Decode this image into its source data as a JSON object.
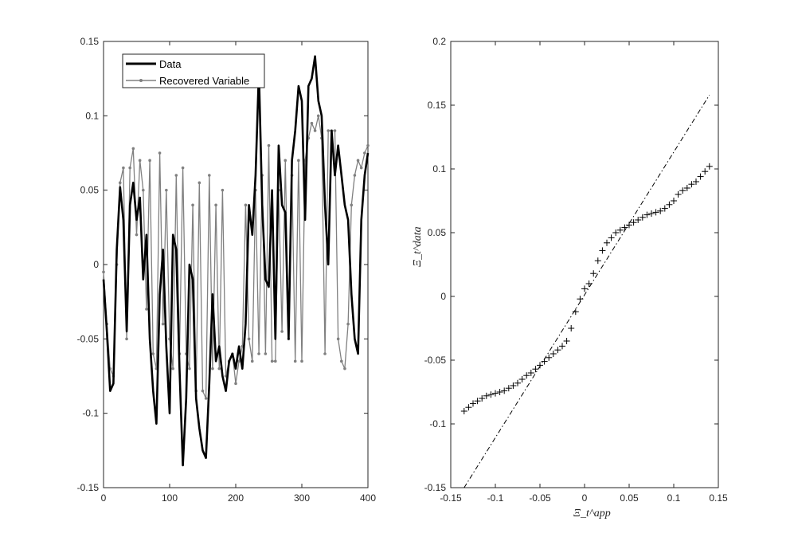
{
  "chart_data": [
    {
      "type": "line",
      "xlim": [
        0,
        400
      ],
      "ylim": [
        -0.15,
        0.15
      ],
      "xticks": [
        0,
        100,
        200,
        300,
        400
      ],
      "yticks": [
        -0.15,
        -0.1,
        -0.05,
        0,
        0.05,
        0.1,
        0.15
      ],
      "xtick_labels": [
        "0",
        "100",
        "200",
        "300",
        "400"
      ],
      "ytick_labels": [
        "-0.15",
        "-0.1",
        "-0.05",
        "0",
        "0.05",
        "0.1",
        "0.15"
      ],
      "legend_position": "top-left",
      "grid": false,
      "series": [
        {
          "name": "Data",
          "color": "#000000",
          "style": "solid-thick",
          "x": [
            0,
            5,
            10,
            15,
            20,
            25,
            30,
            35,
            40,
            45,
            50,
            55,
            60,
            65,
            70,
            75,
            80,
            85,
            90,
            95,
            100,
            105,
            110,
            115,
            120,
            125,
            130,
            135,
            140,
            145,
            150,
            155,
            160,
            165,
            170,
            175,
            180,
            185,
            190,
            195,
            200,
            205,
            210,
            215,
            220,
            225,
            230,
            235,
            240,
            245,
            250,
            255,
            260,
            265,
            270,
            275,
            280,
            285,
            290,
            295,
            300,
            305,
            310,
            315,
            320,
            325,
            330,
            335,
            340,
            345,
            350,
            355,
            360,
            365,
            370,
            375,
            380,
            385,
            390,
            395,
            400
          ],
          "values": [
            -0.01,
            -0.045,
            -0.085,
            -0.08,
            0.01,
            0.052,
            0.03,
            -0.045,
            0.04,
            0.055,
            0.03,
            0.045,
            -0.01,
            0.02,
            -0.05,
            -0.085,
            -0.107,
            -0.02,
            0.01,
            -0.055,
            -0.1,
            0.02,
            0.01,
            -0.07,
            -0.135,
            -0.09,
            0.0,
            -0.01,
            -0.09,
            -0.11,
            -0.125,
            -0.13,
            -0.08,
            -0.02,
            -0.065,
            -0.055,
            -0.075,
            -0.085,
            -0.065,
            -0.06,
            -0.07,
            -0.055,
            -0.07,
            -0.04,
            0.04,
            0.02,
            0.06,
            0.13,
            0.04,
            -0.01,
            -0.015,
            0.05,
            -0.05,
            0.08,
            0.04,
            0.035,
            -0.05,
            0.07,
            0.09,
            0.12,
            0.11,
            0.03,
            0.12,
            0.125,
            0.14,
            0.11,
            0.1,
            0.04,
            0.0,
            0.09,
            0.06,
            0.08,
            0.06,
            0.04,
            0.03,
            -0.02,
            -0.05,
            -0.06,
            0.03,
            0.06,
            0.075
          ]
        },
        {
          "name": "Recovered Variable",
          "color": "#808080",
          "style": "line-with-dots",
          "x": [
            0,
            5,
            10,
            15,
            20,
            25,
            30,
            35,
            40,
            45,
            50,
            55,
            60,
            65,
            70,
            75,
            80,
            85,
            90,
            95,
            100,
            105,
            110,
            115,
            120,
            125,
            130,
            135,
            140,
            145,
            150,
            155,
            160,
            165,
            170,
            175,
            180,
            185,
            190,
            195,
            200,
            205,
            210,
            215,
            220,
            225,
            230,
            235,
            240,
            245,
            250,
            255,
            260,
            265,
            270,
            275,
            280,
            285,
            290,
            295,
            300,
            305,
            310,
            315,
            320,
            325,
            330,
            335,
            340,
            345,
            350,
            355,
            360,
            365,
            370,
            375,
            380,
            385,
            390,
            395,
            400
          ],
          "values": [
            -0.005,
            -0.04,
            -0.07,
            -0.075,
            0.0,
            0.055,
            0.065,
            -0.05,
            0.065,
            0.078,
            0.02,
            0.07,
            0.05,
            -0.03,
            0.07,
            -0.06,
            -0.07,
            0.075,
            -0.04,
            0.05,
            -0.05,
            -0.07,
            0.06,
            -0.06,
            0.065,
            -0.06,
            -0.07,
            0.04,
            -0.085,
            0.055,
            -0.085,
            -0.09,
            0.06,
            -0.07,
            0.04,
            -0.07,
            0.05,
            -0.075,
            -0.065,
            -0.06,
            -0.08,
            -0.065,
            -0.055,
            0.04,
            -0.05,
            -0.065,
            0.05,
            -0.06,
            0.06,
            -0.06,
            0.08,
            -0.065,
            -0.065,
            0.05,
            -0.045,
            0.07,
            -0.05,
            0.06,
            -0.065,
            0.07,
            -0.065,
            0.07,
            0.085,
            0.095,
            0.09,
            0.1,
            0.085,
            -0.06,
            0.09,
            0.09,
            0.09,
            -0.05,
            -0.065,
            -0.07,
            -0.04,
            0.04,
            0.06,
            0.07,
            0.065,
            0.075,
            0.08
          ]
        }
      ]
    },
    {
      "type": "scatter",
      "xlabel": "Ξ_t^app",
      "ylabel": "Ξ_t^data",
      "xlim": [
        -0.15,
        0.15
      ],
      "ylim": [
        -0.15,
        0.2
      ],
      "xticks": [
        -0.15,
        -0.1,
        -0.05,
        0,
        0.05,
        0.1,
        0.15
      ],
      "yticks": [
        -0.15,
        -0.1,
        -0.05,
        0,
        0.05,
        0.1,
        0.15,
        0.2
      ],
      "xtick_labels": [
        "-0.15",
        "-0.1",
        "-0.05",
        "0",
        "0.05",
        "0.1",
        "0.15"
      ],
      "ytick_labels": [
        "-0.15",
        "-0.1",
        "-0.05",
        "0",
        "0.05",
        "0.1",
        "0.15",
        "0.2"
      ],
      "grid": false,
      "marker": "+",
      "points": {
        "x": [
          -0.135,
          -0.13,
          -0.125,
          -0.12,
          -0.115,
          -0.11,
          -0.105,
          -0.1,
          -0.095,
          -0.09,
          -0.085,
          -0.08,
          -0.075,
          -0.07,
          -0.065,
          -0.06,
          -0.055,
          -0.05,
          -0.045,
          -0.04,
          -0.035,
          -0.03,
          -0.025,
          -0.02,
          -0.015,
          -0.01,
          -0.005,
          0.0,
          0.005,
          0.01,
          0.015,
          0.02,
          0.025,
          0.03,
          0.035,
          0.04,
          0.045,
          0.05,
          0.055,
          0.06,
          0.065,
          0.07,
          0.075,
          0.08,
          0.085,
          0.09,
          0.095,
          0.1,
          0.105,
          0.11,
          0.115,
          0.12,
          0.125,
          0.13,
          0.135,
          0.14
        ],
        "y": [
          -0.09,
          -0.087,
          -0.084,
          -0.082,
          -0.08,
          -0.078,
          -0.077,
          -0.076,
          -0.075,
          -0.074,
          -0.072,
          -0.07,
          -0.068,
          -0.065,
          -0.062,
          -0.06,
          -0.057,
          -0.054,
          -0.051,
          -0.048,
          -0.045,
          -0.042,
          -0.039,
          -0.035,
          -0.025,
          -0.012,
          -0.002,
          0.006,
          0.01,
          0.018,
          0.028,
          0.036,
          0.042,
          0.046,
          0.05,
          0.052,
          0.054,
          0.056,
          0.058,
          0.06,
          0.062,
          0.064,
          0.065,
          0.066,
          0.067,
          0.069,
          0.072,
          0.075,
          0.08,
          0.083,
          0.085,
          0.088,
          0.09,
          0.094,
          0.098,
          0.102
        ]
      },
      "reference_line": {
        "x": [
          -0.135,
          0.14
        ],
        "y": [
          -0.15,
          0.158
        ],
        "style": "dash-dot"
      }
    }
  ]
}
